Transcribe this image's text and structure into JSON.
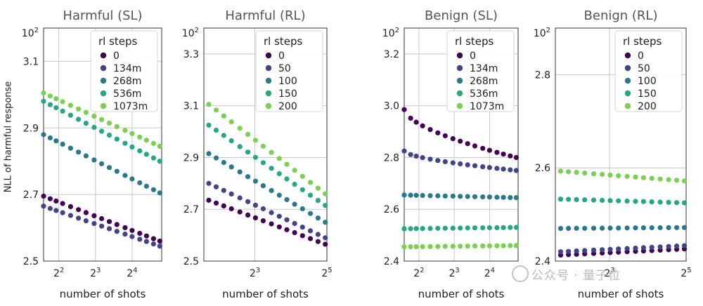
{
  "figure": {
    "ylabel": "NLL of harmful response",
    "xlabel": "number of shots",
    "watermark": "公众号 · 量子位",
    "colors": [
      "#440154",
      "#414487",
      "#2a788e",
      "#22a884",
      "#7ad151"
    ]
  },
  "chart_data": [
    {
      "type": "scatter",
      "title": "Harmful (SL)",
      "xlabel": "number of shots",
      "ylabel": "NLL of harmful response",
      "xscale": "log2",
      "xlim": [
        3,
        28
      ],
      "ylim": [
        2.5,
        3.2
      ],
      "xticks": [
        {
          "value": 4,
          "base": "2",
          "exp": "2"
        },
        {
          "value": 8,
          "base": "2",
          "exp": "3"
        },
        {
          "value": 16,
          "base": "2",
          "exp": "4"
        }
      ],
      "yticks": [
        {
          "value": 2.5,
          "label": "2.5"
        },
        {
          "value": 2.7,
          "label": "2.7"
        },
        {
          "value": 2.9,
          "label": "2.9"
        },
        {
          "value": 3.1,
          "label": "3.1"
        }
      ],
      "ytop_label": {
        "value": 3.2,
        "base": "10",
        "exp": "2"
      },
      "grid": true,
      "legend": {
        "title": "rl steps",
        "position": "top-right"
      },
      "series": [
        {
          "name": "0",
          "color": "#440154",
          "start": 2.695,
          "end": 2.56
        },
        {
          "name": "134m",
          "color": "#414487",
          "start": 2.665,
          "end": 2.545
        },
        {
          "name": "268m",
          "color": "#2a788e",
          "start": 2.88,
          "end": 2.705
        },
        {
          "name": "536m",
          "color": "#22a884",
          "start": 2.98,
          "end": 2.8
        },
        {
          "name": "1073m",
          "color": "#7ad151",
          "start": 3.005,
          "end": 2.845
        }
      ]
    },
    {
      "type": "scatter",
      "title": "Harmful (RL)",
      "xlabel": "number of shots",
      "ylabel": "",
      "xscale": "log2",
      "xlim": [
        3,
        32
      ],
      "ylim": [
        2.5,
        3.4
      ],
      "xticks": [
        {
          "value": 8,
          "base": "2",
          "exp": "3"
        },
        {
          "value": 32,
          "base": "2",
          "exp": "5"
        }
      ],
      "yticks": [
        {
          "value": 2.5,
          "label": "2.5"
        },
        {
          "value": 2.7,
          "label": "2.7"
        },
        {
          "value": 2.9,
          "label": "2.9"
        },
        {
          "value": 3.1,
          "label": "3.1"
        },
        {
          "value": 3.3,
          "label": "3.3"
        }
      ],
      "ytop_label": {
        "value": 3.4,
        "base": "10",
        "exp": "2"
      },
      "grid": true,
      "legend": {
        "title": "rl steps",
        "position": "top-right"
      },
      "series": [
        {
          "name": "0",
          "color": "#440154",
          "start": 2.735,
          "end": 2.565
        },
        {
          "name": "50",
          "color": "#414487",
          "start": 2.8,
          "end": 2.59
        },
        {
          "name": "100",
          "color": "#2a788e",
          "start": 2.915,
          "end": 2.65
        },
        {
          "name": "150",
          "color": "#22a884",
          "start": 3.025,
          "end": 2.715
        },
        {
          "name": "200",
          "color": "#7ad151",
          "start": 3.105,
          "end": 2.76
        }
      ]
    },
    {
      "type": "scatter",
      "title": "Benign (SL)",
      "xlabel": "number of shots",
      "ylabel": "",
      "xscale": "log2",
      "xlim": [
        3,
        28
      ],
      "ylim": [
        2.4,
        3.3
      ],
      "xticks": [
        {
          "value": 4,
          "base": "2",
          "exp": "2"
        },
        {
          "value": 8,
          "base": "2",
          "exp": "3"
        },
        {
          "value": 16,
          "base": "2",
          "exp": "4"
        }
      ],
      "yticks": [
        {
          "value": 2.4,
          "label": "2.4"
        },
        {
          "value": 2.6,
          "label": "2.6"
        },
        {
          "value": 2.8,
          "label": "2.8"
        },
        {
          "value": 3.0,
          "label": "3.0"
        },
        {
          "value": 3.2,
          "label": "3.2"
        }
      ],
      "ytop_label": {
        "value": 3.3,
        "base": "10",
        "exp": "2"
      },
      "grid": true,
      "legend": {
        "title": "rl steps",
        "position": "top-right"
      },
      "series": [
        {
          "name": "0",
          "color": "#440154",
          "start": 2.985,
          "end": 2.8
        },
        {
          "name": "134m",
          "color": "#414487",
          "start": 2.825,
          "end": 2.75
        },
        {
          "name": "268m",
          "color": "#2a788e",
          "start": 2.655,
          "end": 2.645
        },
        {
          "name": "536m",
          "color": "#22a884",
          "start": 2.525,
          "end": 2.53
        },
        {
          "name": "1073m",
          "color": "#7ad151",
          "start": 2.455,
          "end": 2.46
        }
      ]
    },
    {
      "type": "scatter",
      "title": "Benign (RL)",
      "xlabel": "number of shots",
      "ylabel": "",
      "xscale": "log2",
      "xlim": [
        3,
        32
      ],
      "ylim": [
        2.4,
        2.9
      ],
      "xticks": [
        {
          "value": 8,
          "base": "2",
          "exp": "3"
        },
        {
          "value": 32,
          "base": "2",
          "exp": "5"
        }
      ],
      "yticks": [
        {
          "value": 2.4,
          "label": "2.4"
        },
        {
          "value": 2.6,
          "label": "2.6"
        },
        {
          "value": 2.8,
          "label": "2.8"
        }
      ],
      "ytop_label": {
        "value": 2.9,
        "base": "10",
        "exp": "2"
      },
      "grid": true,
      "legend": {
        "title": "rl steps",
        "position": "top-right"
      },
      "series": [
        {
          "name": "0",
          "color": "#440154",
          "start": 2.413,
          "end": 2.426
        },
        {
          "name": "50",
          "color": "#414487",
          "start": 2.42,
          "end": 2.433
        },
        {
          "name": "100",
          "color": "#2a788e",
          "start": 2.47,
          "end": 2.472
        },
        {
          "name": "150",
          "color": "#22a884",
          "start": 2.533,
          "end": 2.525
        },
        {
          "name": "200",
          "color": "#7ad151",
          "start": 2.593,
          "end": 2.572
        }
      ]
    }
  ]
}
